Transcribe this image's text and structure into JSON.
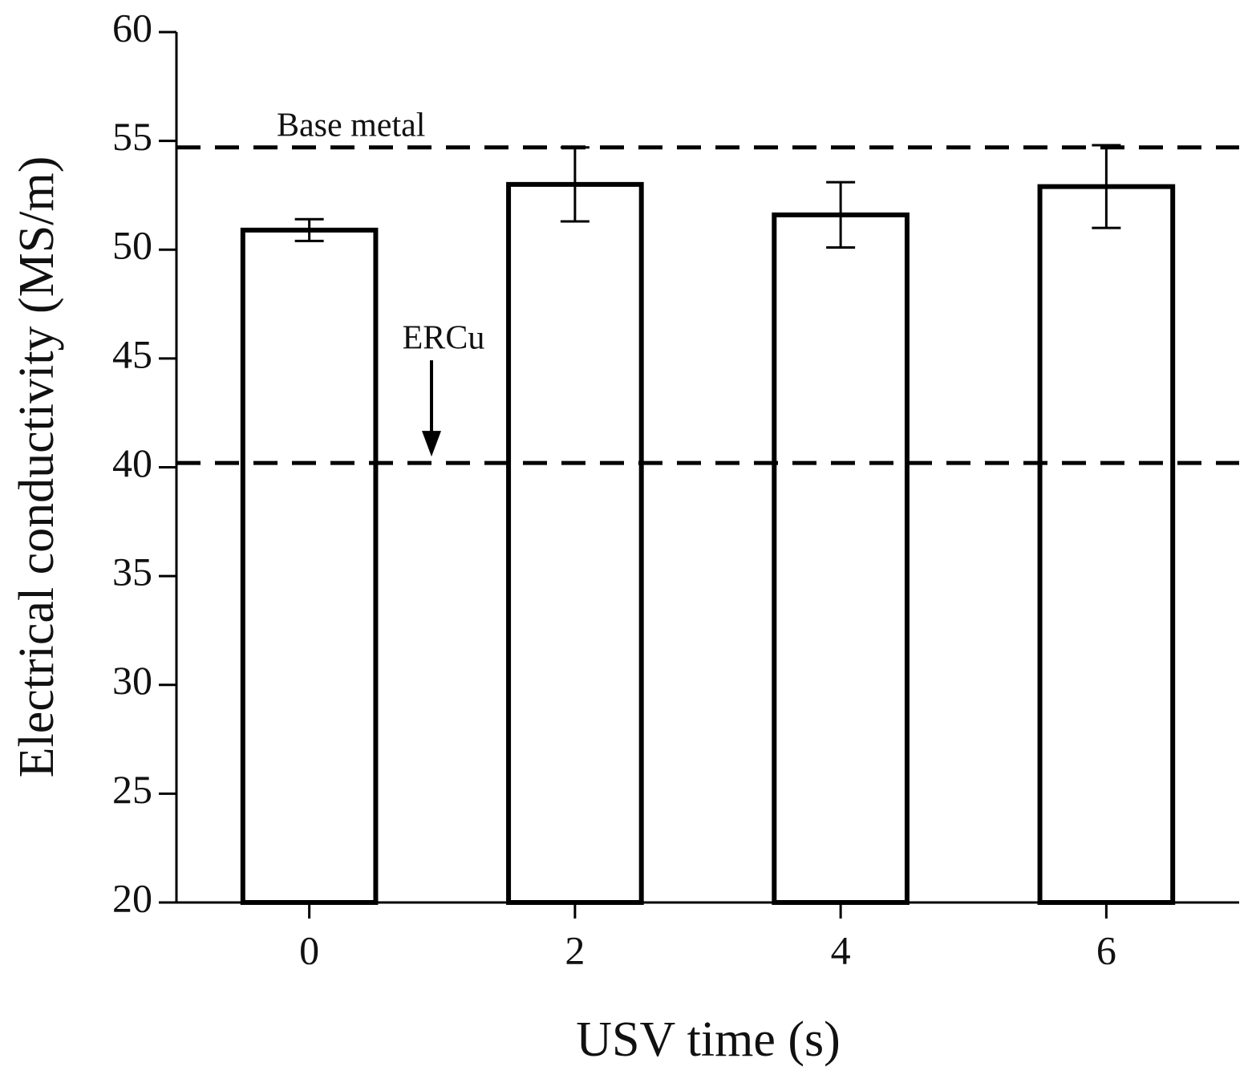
{
  "chart_data": {
    "type": "bar",
    "x": [
      0,
      2,
      4,
      6
    ],
    "values": [
      50.9,
      53.0,
      51.6,
      52.9
    ],
    "errors": [
      0.5,
      1.7,
      1.5,
      1.9
    ],
    "color": "#ffffff",
    "edge_color": "#000000",
    "xlabel": "USV time (s)",
    "ylabel": "Electrical conductivity (MS/m)",
    "xlim": [
      -1,
      7
    ],
    "xticks": [
      0,
      2,
      4,
      6
    ],
    "ylim": [
      20,
      60
    ],
    "yticks": [
      20,
      25,
      30,
      35,
      40,
      45,
      50,
      55,
      60
    ],
    "reference_lines": [
      {
        "name": "Base metal",
        "value": 54.7
      },
      {
        "name": "ERCu",
        "value": 40.2
      }
    ]
  }
}
